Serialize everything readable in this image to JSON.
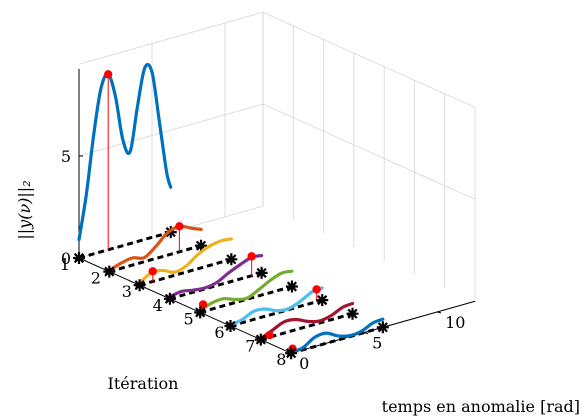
{
  "chart_data": {
    "type": "line",
    "title": "",
    "xlabel": "Itération",
    "ylabel": "temps en anomalie [rad]",
    "zlabel": "||y(ν)||₂",
    "iteration_ticks": [
      "1",
      "2",
      "3",
      "4",
      "5",
      "6",
      "7",
      "8"
    ],
    "time_ticks": [
      "0",
      "5",
      "10"
    ],
    "norm_ticks": [
      "0",
      "5"
    ],
    "time_range": [
      0,
      12.6
    ],
    "norm_range": [
      0,
      9.5
    ],
    "grid": true,
    "curve_time_range": [
      0,
      6.283
    ],
    "zero_line_time_range": [
      0,
      6.283
    ],
    "series": [
      {
        "iteration": 1,
        "color": "#0072BD",
        "t": [
          0,
          0.5,
          1,
          1.5,
          2,
          2.5,
          3,
          3.5,
          4,
          4.5,
          5,
          5.5,
          6,
          6.283
        ],
        "norm": [
          0.9,
          3.0,
          5.8,
          8.0,
          8.6,
          7.4,
          5.2,
          4.5,
          6.6,
          8.4,
          8.1,
          5.6,
          3.0,
          2.2
        ],
        "max_marker": {
          "t": 2.0,
          "norm": 8.6
        }
      },
      {
        "iteration": 2,
        "color": "#D95319",
        "t": [
          0,
          0.8,
          1.6,
          2.4,
          3.2,
          4.0,
          4.8,
          5.6,
          6.283
        ],
        "norm": [
          0.05,
          0.25,
          0.35,
          0.2,
          0.6,
          1.1,
          1.25,
          1.0,
          0.8
        ],
        "max_marker": {
          "t": 4.8,
          "norm": 1.25
        }
      },
      {
        "iteration": 3,
        "color": "#EDB120",
        "t": [
          0,
          0.8,
          1.6,
          2.4,
          3.2,
          4.0,
          4.8,
          5.6,
          6.283
        ],
        "norm": [
          0.1,
          0.45,
          0.4,
          0.15,
          0.3,
          0.7,
          0.95,
          1.05,
          1.0
        ],
        "max_marker": {
          "t": 0.9,
          "norm": 0.5
        }
      },
      {
        "iteration": 4,
        "color": "#7E2F8E",
        "t": [
          0,
          0.8,
          1.6,
          2.4,
          3.2,
          4.0,
          4.8,
          5.6,
          6.283
        ],
        "norm": [
          0.1,
          0.2,
          0.1,
          0.05,
          0.15,
          0.45,
          0.7,
          0.9,
          0.85
        ],
        "max_marker": {
          "t": 5.6,
          "norm": 0.95
        }
      },
      {
        "iteration": 5,
        "color": "#77AC30",
        "t": [
          0,
          0.8,
          1.6,
          2.4,
          3.2,
          4.0,
          4.8,
          5.6,
          6.283
        ],
        "norm": [
          0.1,
          0.3,
          0.35,
          0.15,
          0.05,
          0.3,
          0.6,
          0.8,
          0.75
        ],
        "max_marker": {
          "t": 0.2,
          "norm": 0.35
        }
      },
      {
        "iteration": 6,
        "color": "#4DBEEE",
        "t": [
          0,
          0.8,
          1.6,
          2.4,
          3.2,
          4.0,
          4.8,
          5.6,
          6.283
        ],
        "norm": [
          0.05,
          0.15,
          0.4,
          0.35,
          0.1,
          0.05,
          0.25,
          0.55,
          0.6
        ],
        "max_marker": {
          "t": 5.9,
          "norm": 0.6
        }
      },
      {
        "iteration": 7,
        "color": "#A2142F",
        "t": [
          0,
          0.8,
          1.6,
          2.4,
          3.2,
          4.0,
          4.8,
          5.6,
          6.283
        ],
        "norm": [
          0.05,
          0.3,
          0.55,
          0.5,
          0.25,
          0.1,
          0.2,
          0.45,
          0.5
        ],
        "max_marker": {
          "t": 0.6,
          "norm": 0.1
        }
      },
      {
        "iteration": 8,
        "color": "#0072BD",
        "t": [
          0,
          0.8,
          1.6,
          2.4,
          3.2,
          4.0,
          4.8,
          5.6,
          6.283
        ],
        "norm": [
          0.05,
          0.1,
          0.45,
          0.5,
          0.2,
          0.05,
          0.1,
          0.35,
          0.4
        ],
        "max_marker": {
          "t": 0.1,
          "norm": 0.2
        }
      }
    ],
    "colors": {
      "marker_max": "#ff0000",
      "stem": "#ff0000",
      "zero_line": "#000000",
      "endpoint_marker": "#000000",
      "grid": "#d0d0d0",
      "axis": "#000000"
    }
  }
}
